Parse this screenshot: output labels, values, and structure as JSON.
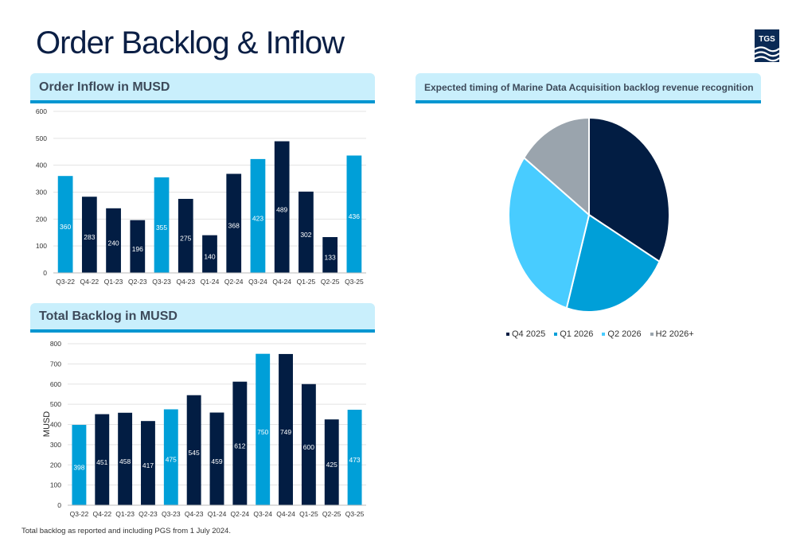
{
  "page": {
    "title": "Order Backlog & Inflow",
    "logo_text": "TGS",
    "note": "Total backlog as reported and including PGS from 1 July 2024."
  },
  "colors": {
    "dark": "#021d43",
    "light": "#009fd8",
    "q2": "#48ccff",
    "grey": "#9aa4ad"
  },
  "chart_data": [
    {
      "type": "bar",
      "title": "Order Inflow in MUSD",
      "xlabel": "",
      "ylabel": "",
      "ylim": [
        0,
        600
      ],
      "yticks": [
        0,
        100,
        200,
        300,
        400,
        500,
        600
      ],
      "categories": [
        "Q3-22",
        "Q4-22",
        "Q1-23",
        "Q2-23",
        "Q3-23",
        "Q4-23",
        "Q1-24",
        "Q2-24",
        "Q3-24",
        "Q4-24",
        "Q1-25",
        "Q2-25",
        "Q3-25"
      ],
      "values": [
        360,
        283,
        240,
        196,
        355,
        275,
        140,
        368,
        423,
        489,
        302,
        133,
        436
      ]
    },
    {
      "type": "bar",
      "title": "Total Backlog in MUSD",
      "xlabel": "",
      "ylabel": "MUSD",
      "ylim": [
        0,
        800
      ],
      "yticks": [
        0,
        100,
        200,
        300,
        400,
        500,
        600,
        700,
        800
      ],
      "categories": [
        "Q3-22",
        "Q4-22",
        "Q1-23",
        "Q2-23",
        "Q3-23",
        "Q4-23",
        "Q1-24",
        "Q2-24",
        "Q3-24",
        "Q4-24",
        "Q1-25",
        "Q2-25",
        "Q3-25"
      ],
      "values": [
        398,
        451,
        458,
        417,
        475,
        545,
        459,
        612,
        750,
        749,
        600,
        425,
        473
      ]
    },
    {
      "type": "pie",
      "title": "Expected timing of Marine Data Acquisition backlog revenue recognition",
      "legend_position": "bottom",
      "labels": [
        "Q4 2025",
        "Q1 2026",
        "Q2 2026",
        "H2 2026+"
      ],
      "values": [
        33,
        21.5,
        30.5,
        15
      ]
    }
  ]
}
